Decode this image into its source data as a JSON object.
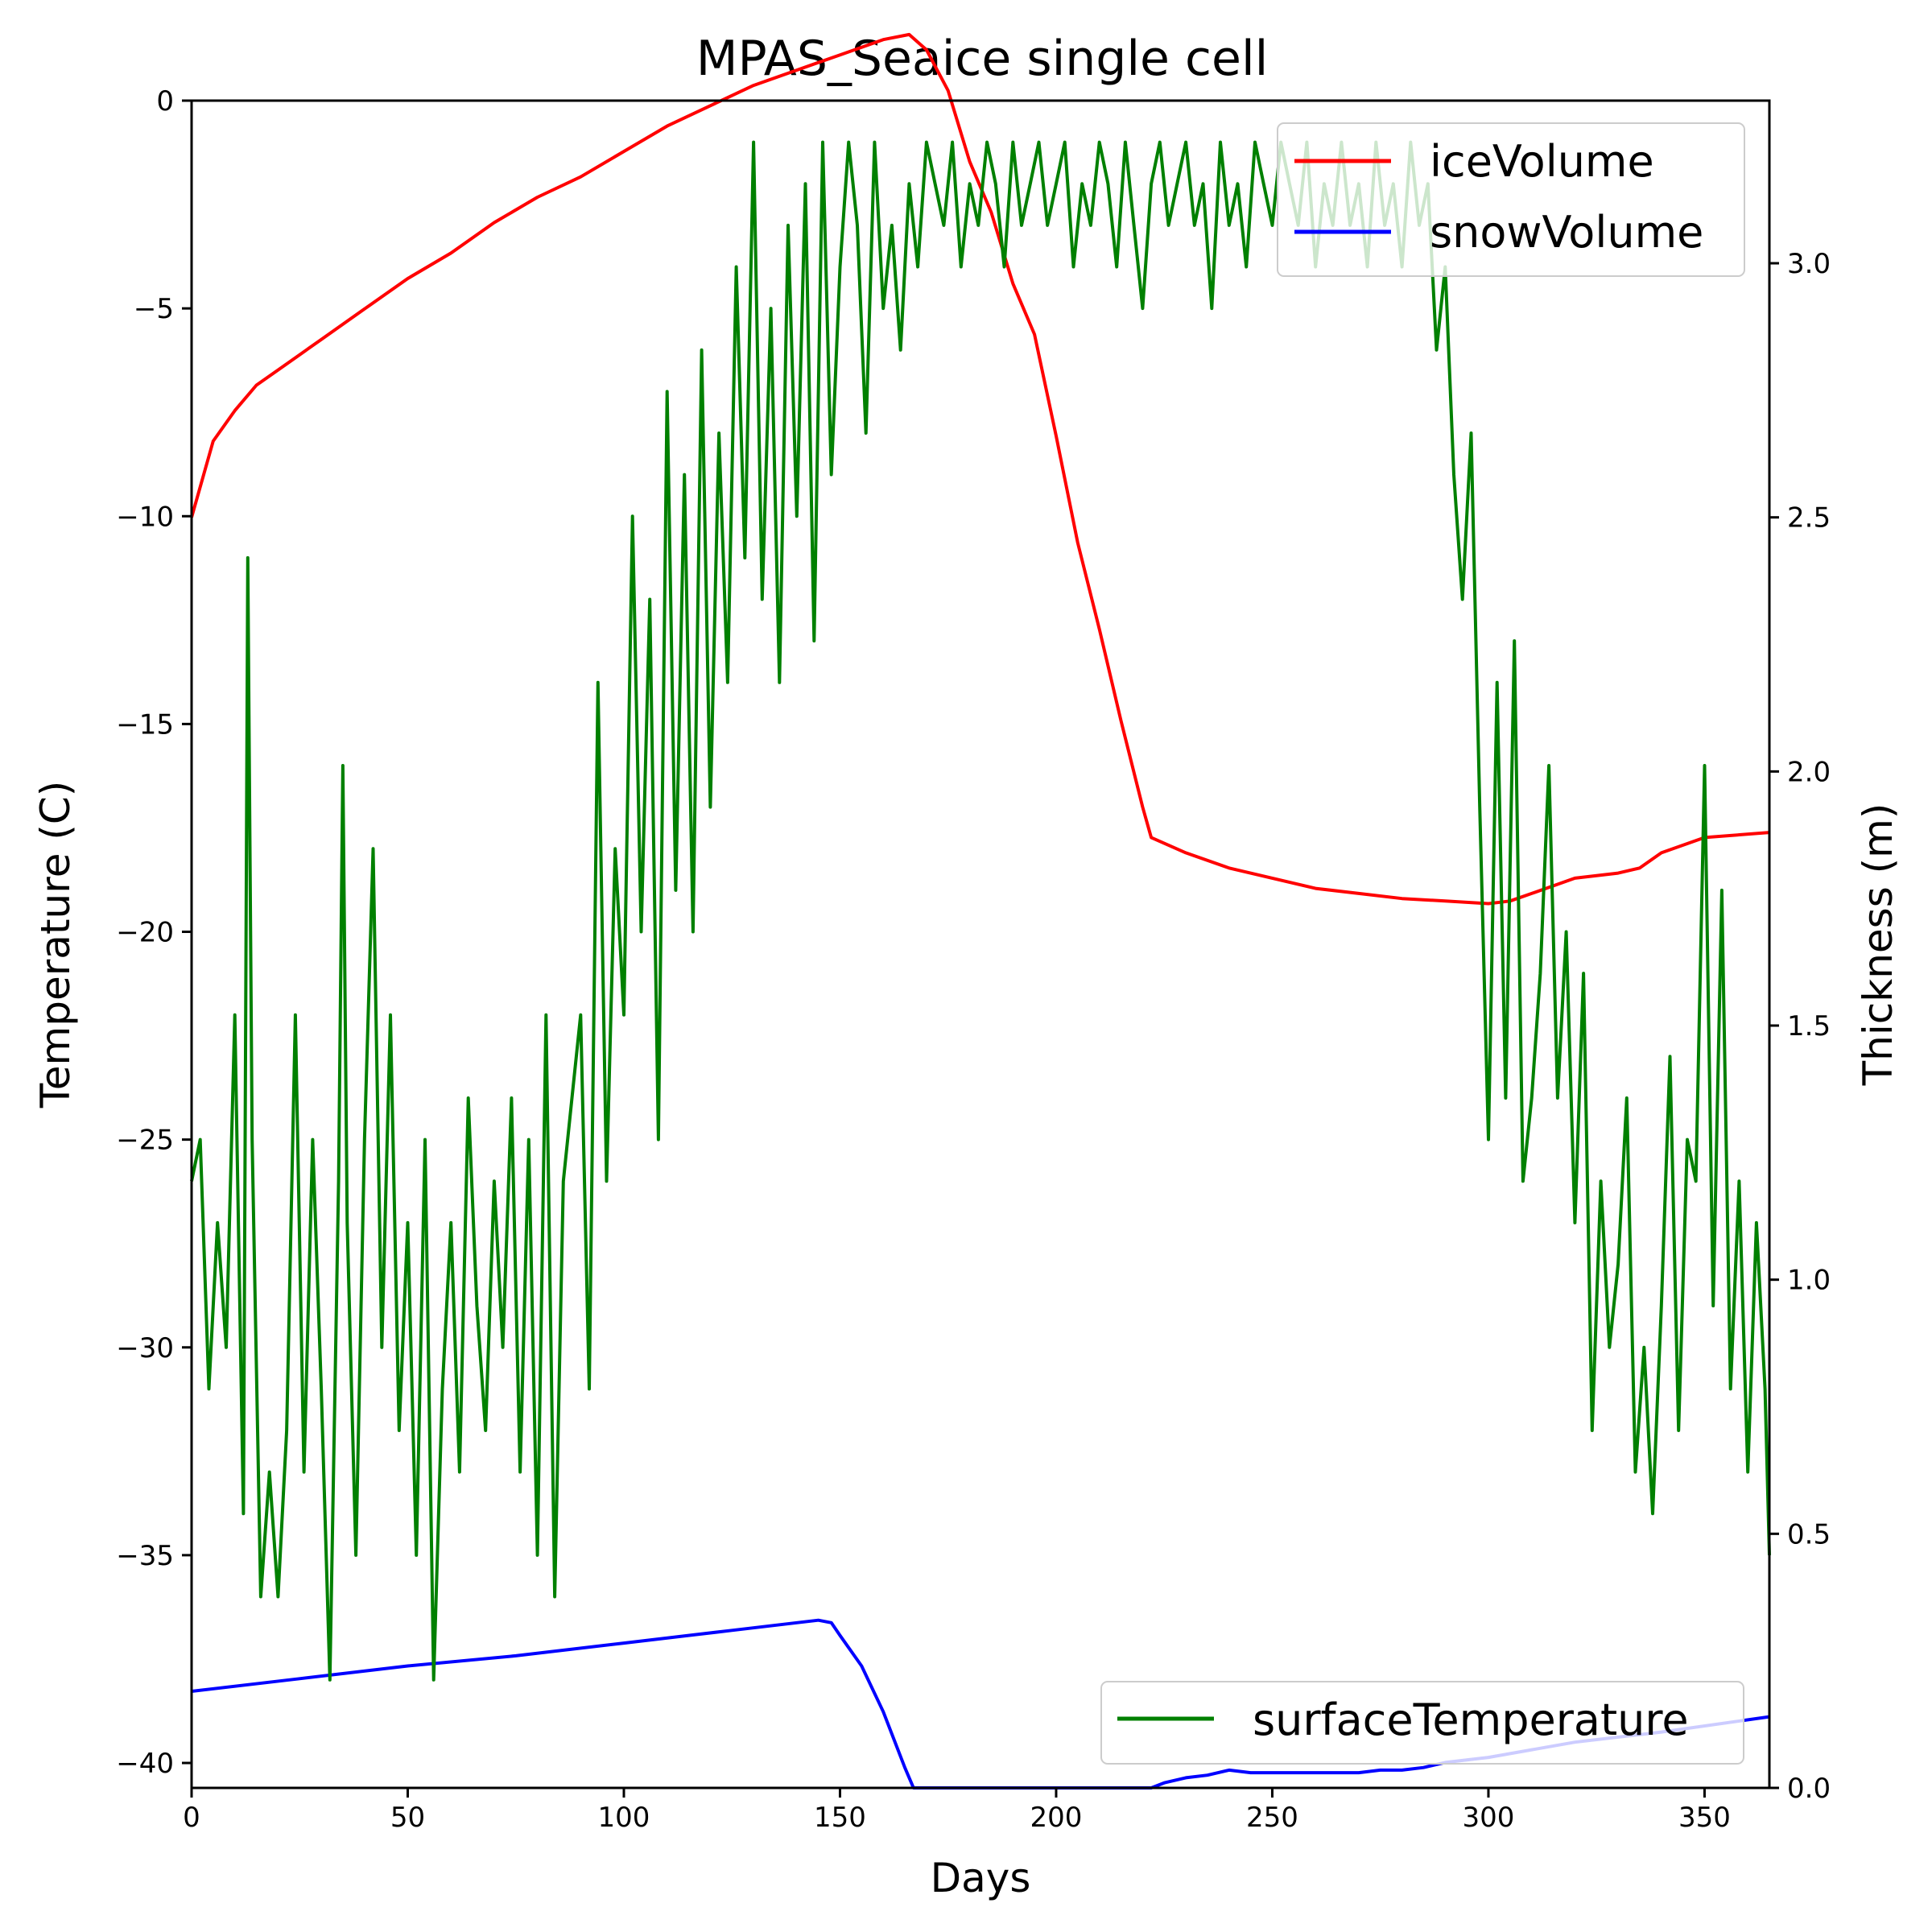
{
  "chart_data": {
    "type": "line",
    "title": "MPAS_Seaice single cell",
    "xlabel": "Days",
    "ylabel_left": "Temperature (C)",
    "ylabel_right": "Thickness (m)",
    "xlim": [
      0,
      365
    ],
    "ylim_left": [
      -40.6,
      0
    ],
    "ylim_right": [
      0,
      3.32
    ],
    "xticks": [
      0,
      50,
      100,
      150,
      200,
      250,
      300,
      350
    ],
    "yticks_left": [
      0,
      -5,
      -10,
      -15,
      -20,
      -25,
      -30,
      -35,
      -40
    ],
    "yticks_right": [
      0.0,
      0.5,
      1.0,
      1.5,
      2.0,
      2.5,
      3.0
    ],
    "xtick_labels": [
      "0",
      "50",
      "100",
      "150",
      "200",
      "250",
      "300",
      "350"
    ],
    "ytick_labels_left": [
      "0",
      "−5",
      "−10",
      "−15",
      "−20",
      "−25",
      "−30",
      "−35",
      "−40"
    ],
    "ytick_labels_right": [
      "0.0",
      "0.5",
      "1.0",
      "1.5",
      "2.0",
      "2.5",
      "3.0"
    ],
    "legends": {
      "upper_right": [
        "iceVolume",
        "snowVolume"
      ],
      "lower_right": [
        "surfaceTemperature"
      ]
    },
    "series": [
      {
        "name": "iceVolume",
        "axis": "right",
        "color": "#ff0000",
        "x": [
          0,
          5,
          10,
          15,
          20,
          25,
          30,
          40,
          50,
          60,
          70,
          80,
          90,
          100,
          110,
          120,
          130,
          140,
          150,
          160,
          166,
          170,
          175,
          180,
          185,
          190,
          195,
          200,
          205,
          210,
          215,
          220,
          222,
          230,
          240,
          250,
          260,
          270,
          280,
          290,
          300,
          305,
          310,
          320,
          330,
          335,
          340,
          350,
          365
        ],
        "values": [
          2.5,
          2.65,
          2.71,
          2.76,
          2.79,
          2.82,
          2.85,
          2.91,
          2.97,
          3.02,
          3.08,
          3.13,
          3.17,
          3.22,
          3.27,
          3.31,
          3.35,
          3.38,
          3.41,
          3.44,
          3.45,
          3.42,
          3.34,
          3.2,
          3.1,
          2.96,
          2.86,
          2.66,
          2.45,
          2.28,
          2.1,
          1.93,
          1.87,
          1.84,
          1.81,
          1.79,
          1.77,
          1.76,
          1.75,
          1.745,
          1.74,
          1.745,
          1.76,
          1.79,
          1.8,
          1.81,
          1.84,
          1.87,
          1.88
        ]
      },
      {
        "name": "snowVolume",
        "axis": "right",
        "color": "#0000ff",
        "x": [
          0,
          25,
          50,
          75,
          100,
          125,
          140,
          145,
          148,
          150,
          155,
          160,
          165,
          167,
          170,
          180,
          200,
          210,
          220,
          222,
          225,
          230,
          235,
          240,
          245,
          260,
          270,
          275,
          280,
          285,
          290,
          300,
          320,
          340,
          365
        ],
        "values": [
          0.19,
          0.215,
          0.24,
          0.26,
          0.285,
          0.31,
          0.325,
          0.33,
          0.325,
          0.3,
          0.24,
          0.15,
          0.04,
          0.0,
          0.0,
          0.0,
          0.0,
          0.0,
          0.0,
          0.0,
          0.01,
          0.02,
          0.025,
          0.035,
          0.03,
          0.03,
          0.03,
          0.035,
          0.035,
          0.04,
          0.05,
          0.06,
          0.09,
          0.11,
          0.14
        ]
      },
      {
        "name": "surfaceTemperature",
        "axis": "left",
        "color": "#008000",
        "x": [
          0,
          2,
          4,
          6,
          8,
          10,
          12,
          13,
          14,
          16,
          18,
          20,
          22,
          24,
          26,
          28,
          30,
          32,
          34,
          35,
          36,
          38,
          40,
          42,
          44,
          46,
          48,
          50,
          52,
          54,
          56,
          58,
          60,
          62,
          64,
          66,
          68,
          70,
          72,
          74,
          76,
          78,
          80,
          82,
          84,
          86,
          88,
          90,
          92,
          94,
          96,
          98,
          100,
          102,
          104,
          106,
          108,
          110,
          112,
          114,
          116,
          118,
          120,
          122,
          124,
          126,
          128,
          130,
          132,
          134,
          136,
          138,
          140,
          142,
          144,
          146,
          148,
          150,
          152,
          154,
          156,
          158,
          160,
          162,
          164,
          166,
          168,
          170,
          172,
          174,
          176,
          178,
          180,
          182,
          184,
          186,
          188,
          190,
          192,
          194,
          196,
          198,
          200,
          202,
          204,
          206,
          208,
          210,
          212,
          214,
          216,
          218,
          220,
          222,
          224,
          226,
          228,
          230,
          232,
          234,
          236,
          238,
          240,
          242,
          244,
          246,
          248,
          250,
          252,
          254,
          256,
          258,
          260,
          262,
          264,
          266,
          268,
          270,
          272,
          274,
          276,
          278,
          280,
          282,
          284,
          286,
          288,
          290,
          292,
          294,
          296,
          298,
          300,
          302,
          304,
          306,
          308,
          310,
          312,
          314,
          316,
          318,
          320,
          322,
          324,
          326,
          328,
          330,
          332,
          334,
          336,
          338,
          340,
          342,
          344,
          346,
          348,
          350,
          352,
          354,
          356,
          358,
          360,
          362,
          364,
          365
        ],
        "values": [
          -26,
          -25,
          -31,
          -27,
          -30,
          -22,
          -34,
          -11,
          -25,
          -36,
          -33,
          -36,
          -32,
          -22,
          -33,
          -25,
          -31,
          -38,
          -26,
          -16,
          -27,
          -35,
          -25,
          -18,
          -30,
          -22,
          -32,
          -27,
          -35,
          -25,
          -38,
          -31,
          -27,
          -33,
          -24,
          -29,
          -32,
          -26,
          -30,
          -24,
          -33,
          -25,
          -35,
          -22,
          -36,
          -26,
          -24,
          -22,
          -31,
          -14,
          -26,
          -18,
          -22,
          -10,
          -20,
          -12,
          -25,
          -7,
          -19,
          -9,
          -20,
          -6,
          -17,
          -8,
          -14,
          -4,
          -11,
          -1,
          -12,
          -5,
          -14,
          -3,
          -10,
          -2,
          -13,
          -1,
          -9,
          -4,
          -1,
          -3,
          -8,
          -1,
          -5,
          -3,
          -6,
          -2,
          -4,
          -1,
          -2,
          -3,
          -1,
          -4,
          -2,
          -3,
          -1,
          -2,
          -4,
          -1,
          -3,
          -2,
          -1,
          -3,
          -2,
          -1,
          -4,
          -2,
          -3,
          -1,
          -2,
          -4,
          -1,
          -3,
          -5,
          -2,
          -1,
          -3,
          -2,
          -1,
          -3,
          -2,
          -5,
          -1,
          -3,
          -2,
          -4,
          -1,
          -2,
          -3,
          -1,
          -2,
          -3,
          -1,
          -4,
          -2,
          -3,
          -1,
          -3,
          -2,
          -4,
          -1,
          -3,
          -2,
          -4,
          -1,
          -3,
          -2,
          -6,
          -4,
          -9,
          -12,
          -8,
          -17,
          -25,
          -14,
          -24,
          -13,
          -26,
          -24,
          -21,
          -16,
          -24,
          -20,
          -27,
          -21,
          -32,
          -26,
          -30,
          -28,
          -24,
          -33,
          -30,
          -34,
          -29,
          -23,
          -32,
          -25,
          -26,
          -16,
          -29,
          -19,
          -31,
          -26,
          -33,
          -27,
          -31,
          -35
        ]
      }
    ]
  }
}
